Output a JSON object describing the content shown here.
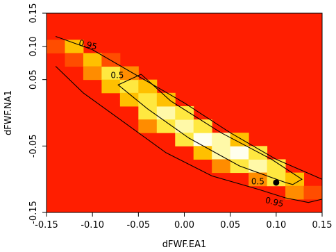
{
  "chart_data": {
    "type": "heatmap",
    "title": "",
    "xlabel": "dFWF.EA1",
    "ylabel": "dFWF.NA1",
    "xlim": [
      -0.15,
      0.15
    ],
    "ylim": [
      -0.15,
      0.15
    ],
    "x_ticks": [
      -0.15,
      -0.1,
      -0.05,
      0.0,
      0.05,
      0.1,
      0.15
    ],
    "x_tick_labels": [
      "-0.15",
      "-0.10",
      "-0.05",
      "0.00",
      "0.05",
      "0.10",
      "0.15"
    ],
    "y_ticks": [
      -0.15,
      -0.05,
      0.05,
      0.1,
      0.15
    ],
    "y_tick_labels": [
      "-0.15",
      "-0.05",
      "0.05",
      "0.10",
      "0.15"
    ],
    "grid": false,
    "colormap": [
      "#ff1e00",
      "#ff4d00",
      "#ff8c00",
      "#ffc000",
      "#ffe840",
      "#fff9a8",
      "#ffffee"
    ],
    "cells": [
      [
        -0.14,
        0.1,
        1
      ],
      [
        -0.12,
        0.1,
        3
      ],
      [
        -0.12,
        0.08,
        1
      ],
      [
        -0.1,
        0.08,
        3
      ],
      [
        -0.1,
        0.06,
        2
      ],
      [
        -0.08,
        0.06,
        4
      ],
      [
        -0.08,
        0.04,
        3
      ],
      [
        -0.08,
        0.08,
        1
      ],
      [
        -0.06,
        0.04,
        4
      ],
      [
        -0.06,
        0.02,
        3
      ],
      [
        -0.06,
        0.06,
        2
      ],
      [
        -0.04,
        0.02,
        4
      ],
      [
        -0.04,
        0.0,
        4
      ],
      [
        -0.04,
        0.04,
        3
      ],
      [
        -0.04,
        -0.02,
        2
      ],
      [
        -0.02,
        0.0,
        5
      ],
      [
        -0.02,
        -0.02,
        4
      ],
      [
        -0.02,
        0.02,
        3
      ],
      [
        0.0,
        -0.02,
        5
      ],
      [
        0.0,
        -0.04,
        4
      ],
      [
        0.0,
        0.0,
        4
      ],
      [
        0.02,
        -0.04,
        6
      ],
      [
        0.02,
        -0.02,
        4
      ],
      [
        0.02,
        -0.06,
        3
      ],
      [
        0.04,
        -0.04,
        5
      ],
      [
        0.04,
        -0.06,
        5
      ],
      [
        0.04,
        -0.08,
        2
      ],
      [
        0.06,
        -0.06,
        6
      ],
      [
        0.06,
        -0.04,
        3
      ],
      [
        0.06,
        -0.08,
        4
      ],
      [
        0.08,
        -0.08,
        5
      ],
      [
        0.08,
        -0.06,
        4
      ],
      [
        0.08,
        -0.1,
        2
      ],
      [
        0.1,
        -0.1,
        4
      ],
      [
        0.1,
        -0.08,
        4
      ],
      [
        0.12,
        -0.1,
        3
      ],
      [
        0.12,
        -0.12,
        2
      ],
      [
        0.14,
        -0.12,
        1
      ]
    ],
    "contours": [
      {
        "label": "0.5",
        "points": [
          [
            -0.047,
            0.058
          ],
          [
            -0.072,
            0.042
          ],
          [
            -0.04,
            0.006
          ],
          [
            0.005,
            -0.038
          ],
          [
            0.06,
            -0.08
          ],
          [
            0.11,
            -0.105
          ],
          [
            0.118,
            -0.108
          ],
          [
            0.128,
            -0.1
          ],
          [
            0.095,
            -0.07
          ],
          [
            0.04,
            -0.03
          ],
          [
            -0.015,
            0.018
          ],
          [
            -0.047,
            0.058
          ]
        ]
      },
      {
        "label": "0.95",
        "points": [
          [
            -0.14,
            0.115
          ],
          [
            -0.1,
            0.095
          ],
          [
            -0.05,
            0.055
          ],
          [
            0.0,
            0.015
          ],
          [
            0.05,
            -0.03
          ],
          [
            0.1,
            -0.07
          ],
          [
            0.15,
            -0.1
          ]
        ]
      },
      {
        "label": "0.95",
        "points": [
          [
            -0.14,
            0.07
          ],
          [
            -0.11,
            0.03
          ],
          [
            -0.07,
            -0.01
          ],
          [
            -0.02,
            -0.06
          ],
          [
            0.03,
            -0.095
          ],
          [
            0.08,
            -0.115
          ],
          [
            0.11,
            -0.128
          ],
          [
            0.135,
            -0.135
          ],
          [
            0.15,
            -0.13
          ]
        ]
      }
    ],
    "contour_labels": [
      {
        "text": "0.95",
        "x": -0.105,
        "y": 0.102,
        "rot": 14
      },
      {
        "text": "0.5",
        "x": -0.073,
        "y": 0.056,
        "rot": 0
      },
      {
        "text": "0.5",
        "x": 0.08,
        "y": -0.104,
        "rot": 0
      },
      {
        "text": "0.95",
        "x": 0.098,
        "y": -0.135,
        "rot": 14
      }
    ],
    "marker": {
      "x": 0.1,
      "y": -0.105
    }
  }
}
